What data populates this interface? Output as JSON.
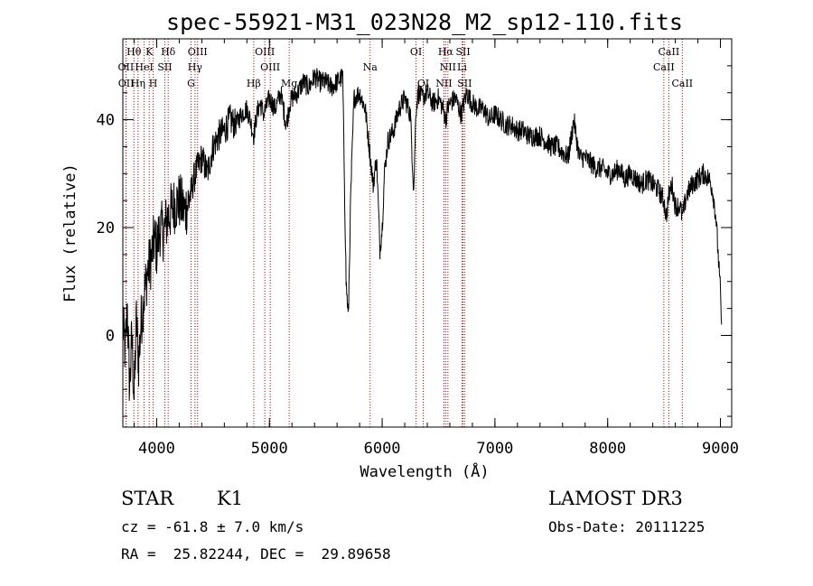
{
  "chart_data": {
    "type": "line",
    "title": "spec-55921-M31_023N28_M2_sp12-110.fits",
    "xlabel": "Wavelength (Å)",
    "ylabel": "Flux (relative)",
    "xlim": [
      3700,
      9100
    ],
    "ylim": [
      -17,
      55
    ],
    "xticks": [
      4000,
      5000,
      6000,
      7000,
      8000,
      9000
    ],
    "xtick_labels": [
      "4000",
      "5000",
      "6000",
      "7000",
      "8000",
      "9000"
    ],
    "yticks": [
      0,
      20,
      40
    ],
    "ytick_labels": [
      "0",
      "20",
      "40"
    ],
    "xminor_step": 200,
    "yminor_step": 5,
    "series": [
      {
        "name": "spectrum",
        "x": [
          3700,
          3720,
          3740,
          3760,
          3780,
          3800,
          3820,
          3840,
          3860,
          3880,
          3900,
          3920,
          3950,
          3980,
          4000,
          4030,
          4060,
          4100,
          4150,
          4200,
          4250,
          4300,
          4330,
          4360,
          4400,
          4450,
          4500,
          4550,
          4600,
          4650,
          4700,
          4750,
          4800,
          4830,
          4860,
          4880,
          4900,
          4920,
          4950,
          5000,
          5050,
          5100,
          5150,
          5180,
          5200,
          5250,
          5300,
          5350,
          5400,
          5450,
          5500,
          5550,
          5600,
          5650,
          5680,
          5700,
          5720,
          5750,
          5800,
          5850,
          5870,
          5890,
          5900,
          5920,
          5950,
          5980,
          6000,
          6020,
          6050,
          6100,
          6150,
          6200,
          6250,
          6280,
          6300,
          6320,
          6350,
          6400,
          6450,
          6500,
          6540,
          6563,
          6580,
          6600,
          6650,
          6700,
          6750,
          6800,
          6850,
          6900,
          6950,
          7000,
          7050,
          7100,
          7150,
          7200,
          7250,
          7300,
          7350,
          7400,
          7450,
          7500,
          7550,
          7600,
          7650,
          7700,
          7720,
          7750,
          7800,
          7850,
          7900,
          7950,
          8000,
          8050,
          8100,
          8150,
          8200,
          8250,
          8300,
          8350,
          8400,
          8450,
          8498,
          8520,
          8542,
          8570,
          8600,
          8640,
          8662,
          8700,
          8750,
          8800,
          8850,
          8900,
          8930,
          8960,
          8980,
          9000,
          9010
        ],
        "y": [
          2,
          -3,
          5,
          -10,
          0,
          -12,
          3,
          -5,
          2,
          6,
          9,
          12,
          14,
          18,
          16,
          20,
          19,
          22,
          24,
          25,
          23,
          26,
          29,
          31,
          33,
          30,
          35,
          37,
          38,
          40,
          39,
          41,
          42,
          40,
          37,
          40,
          42,
          43,
          41,
          44,
          42,
          45,
          39,
          43,
          44,
          45,
          47,
          46,
          48,
          47,
          47,
          46,
          47,
          48,
          10,
          3,
          25,
          44,
          45,
          42,
          38,
          34,
          32,
          28,
          33,
          16,
          20,
          30,
          36,
          38,
          42,
          44,
          41,
          27,
          42,
          45,
          44,
          45,
          43,
          44,
          42,
          40,
          42,
          43,
          44,
          41,
          45,
          43,
          42,
          42,
          40,
          41,
          40,
          39,
          39,
          38,
          38,
          37,
          37,
          37,
          36,
          35,
          35,
          34,
          33,
          40,
          37,
          33,
          33,
          32,
          31,
          31,
          30,
          30,
          31,
          29,
          30,
          29,
          28,
          29,
          28,
          27,
          25,
          22,
          26,
          28,
          24,
          24,
          22,
          26,
          28,
          29,
          30,
          29,
          27,
          22,
          15,
          8,
          2
        ]
      }
    ],
    "line_labels": [
      {
        "text": "Hθ",
        "x": 3798,
        "row": 1
      },
      {
        "text": "K",
        "x": 3934,
        "row": 1
      },
      {
        "text": "Hδ",
        "x": 4102,
        "row": 1
      },
      {
        "text": "OIII",
        "x": 4363,
        "row": 1
      },
      {
        "text": "OIII",
        "x": 4959,
        "row": 1
      },
      {
        "text": "OI",
        "x": 6300,
        "row": 1
      },
      {
        "text": "Hα",
        "x": 6563,
        "row": 1
      },
      {
        "text": "SII",
        "x": 6717,
        "row": 1
      },
      {
        "text": "CaII",
        "x": 8542,
        "row": 1
      },
      {
        "text": "OII",
        "x": 3727,
        "row": 2
      },
      {
        "text": "HeI",
        "x": 3889,
        "row": 2
      },
      {
        "text": "SII",
        "x": 4072,
        "row": 2
      },
      {
        "text": "Hγ",
        "x": 4340,
        "row": 2
      },
      {
        "text": "OIII",
        "x": 5007,
        "row": 2
      },
      {
        "text": "Na",
        "x": 5893,
        "row": 2
      },
      {
        "text": "NII",
        "x": 6583,
        "row": 2
      },
      {
        "text": "Li",
        "x": 6708,
        "row": 2
      },
      {
        "text": "CaII",
        "x": 8498,
        "row": 2
      },
      {
        "text": "OII",
        "x": 3729,
        "row": 3
      },
      {
        "text": "Hη",
        "x": 3835,
        "row": 3
      },
      {
        "text": "H",
        "x": 3969,
        "row": 3
      },
      {
        "text": "G",
        "x": 4305,
        "row": 3
      },
      {
        "text": "Hβ",
        "x": 4861,
        "row": 3
      },
      {
        "text": "Mg",
        "x": 5175,
        "row": 3
      },
      {
        "text": "OI",
        "x": 6364,
        "row": 3
      },
      {
        "text": "NII",
        "x": 6548,
        "row": 3
      },
      {
        "text": "SII",
        "x": 6731,
        "row": 3
      },
      {
        "text": "CaII",
        "x": 8662,
        "row": 3
      }
    ],
    "line_positions": [
      3727,
      3729,
      3798,
      3835,
      3889,
      3934,
      3969,
      4072,
      4102,
      4305,
      4340,
      4363,
      4861,
      4959,
      5007,
      5175,
      5893,
      6300,
      6364,
      6548,
      6563,
      6583,
      6708,
      6717,
      6731,
      8498,
      8542,
      8662
    ]
  },
  "info": {
    "object_class": "STAR",
    "subclass": "K1",
    "survey": "LAMOST DR3",
    "redshift": "cz = -61.8 ± 7.0 km/s",
    "obs_date": "Obs-Date: 20111225",
    "coords": "RA =  25.82244, DEC =  29.89658"
  },
  "colors": {
    "spectrum": "#000000",
    "line_markers": "#cc0000"
  }
}
